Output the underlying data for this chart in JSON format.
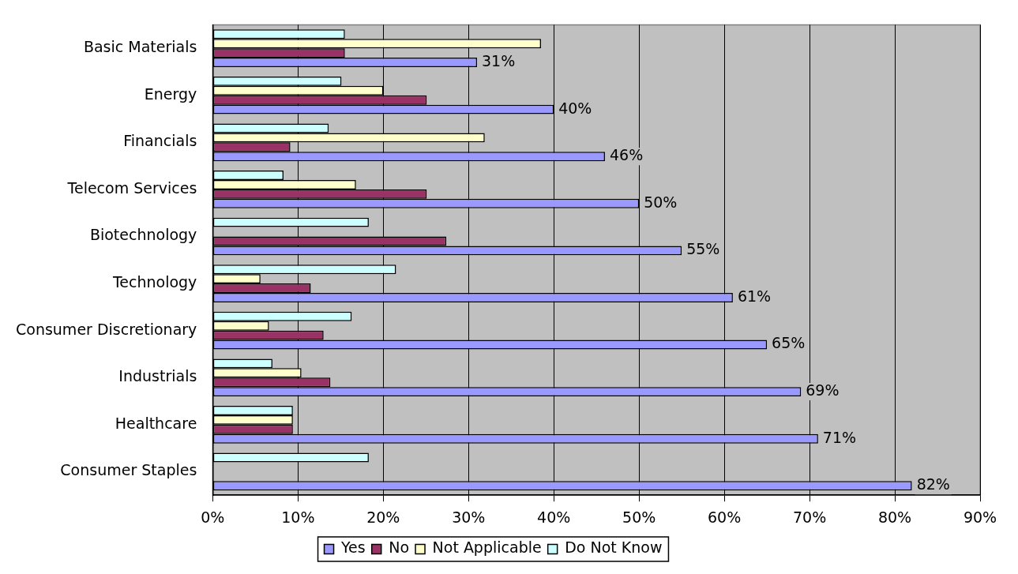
{
  "chart_data": {
    "type": "bar",
    "orientation": "horizontal",
    "categories": [
      "Basic Materials",
      "Energy",
      "Financials",
      "Telecom Services",
      "Biotechnology",
      "Technology",
      "Consumer Discretionary",
      "Industrials",
      "Healthcare",
      "Consumer Staples"
    ],
    "series": [
      {
        "name": "Yes",
        "color": "#9999ff",
        "values": [
          31,
          40,
          46,
          50,
          55,
          61,
          65,
          69,
          71,
          82
        ],
        "value_labels": [
          "31%",
          "40%",
          "46%",
          "50%",
          "55%",
          "61%",
          "65%",
          "69%",
          "71%",
          "82%"
        ]
      },
      {
        "name": "No",
        "color": "#993366",
        "values": [
          15.5,
          25.1,
          9.1,
          25.1,
          27.4,
          11.5,
          13.0,
          13.8,
          9.4,
          null
        ]
      },
      {
        "name": "Not Applicable",
        "color": "#ffffcc",
        "values": [
          38.5,
          20.0,
          31.9,
          16.8,
          null,
          5.6,
          6.6,
          10.4,
          9.4,
          null
        ]
      },
      {
        "name": "Do Not Know",
        "color": "#ccffff",
        "values": [
          15.5,
          15.1,
          13.6,
          8.3,
          18.3,
          21.5,
          16.3,
          7.0,
          9.4,
          18.3
        ]
      }
    ],
    "xlim": [
      0,
      90
    ],
    "xticks": [
      {
        "value": 0,
        "label": "0%"
      },
      {
        "value": 10,
        "label": "10%"
      },
      {
        "value": 20,
        "label": "20%"
      },
      {
        "value": 30,
        "label": "30%"
      },
      {
        "value": 40,
        "label": "40%"
      },
      {
        "value": 50,
        "label": "50%"
      },
      {
        "value": 60,
        "label": "60%"
      },
      {
        "value": 70,
        "label": "70%"
      },
      {
        "value": 80,
        "label": "80%"
      },
      {
        "value": 90,
        "label": "90%"
      }
    ],
    "grid": "x",
    "legend": "bottom"
  }
}
